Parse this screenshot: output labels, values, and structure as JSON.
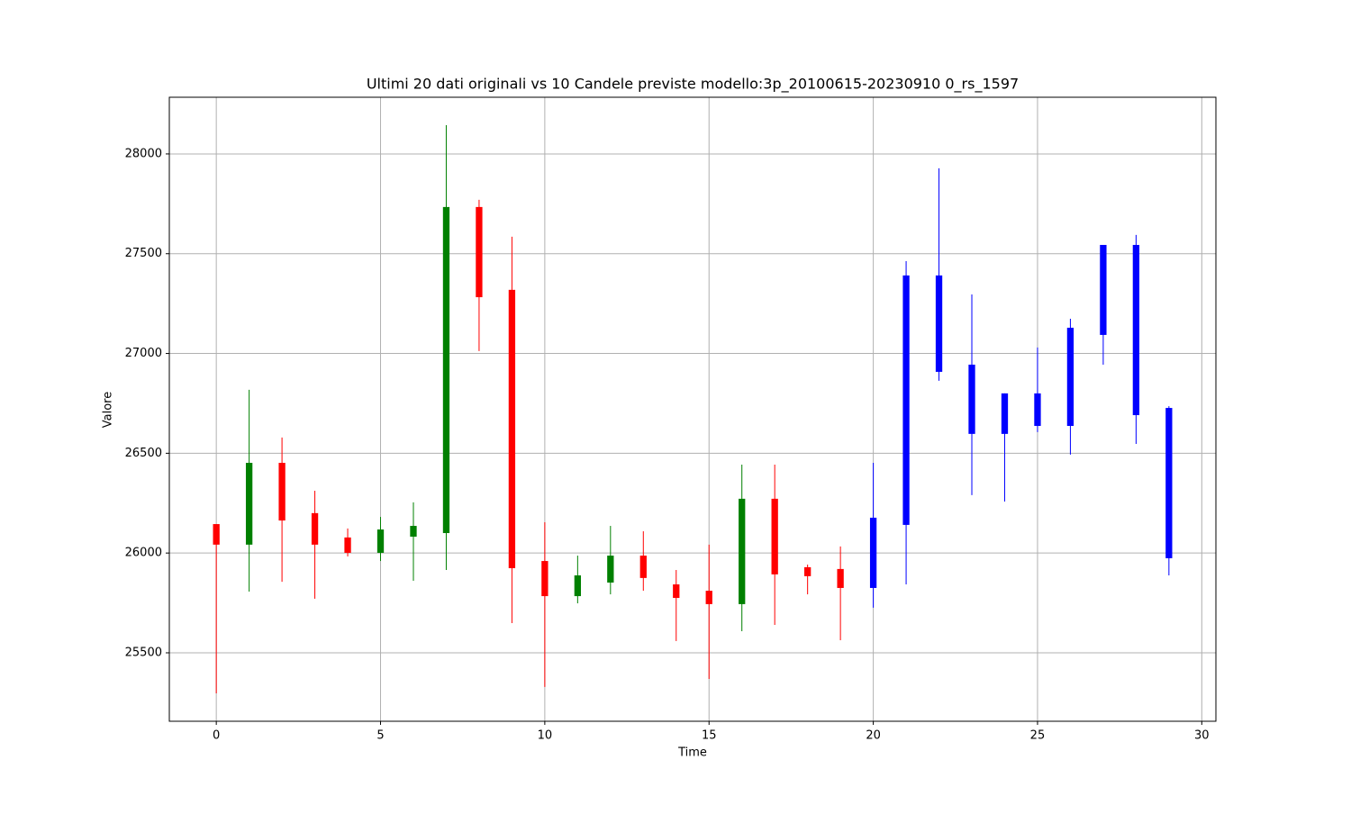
{
  "chart_data": {
    "type": "candlestick",
    "title": "Ultimi 20 dati originali vs 10 Candele previste modello:3p_20100615-20230910 0_rs_1597",
    "xlabel": "Time",
    "ylabel": "Valore",
    "xlim": [
      -1.43,
      30.43
    ],
    "ylim": [
      25157,
      28284
    ],
    "xticks": [
      0,
      5,
      10,
      15,
      20,
      25,
      30
    ],
    "yticks": [
      25500,
      26000,
      26500,
      27000,
      27500,
      28000
    ],
    "grid": true,
    "series": [
      {
        "up_color": "green",
        "down_color": "red",
        "x": [
          0,
          1,
          2,
          3,
          4,
          5,
          6,
          7,
          8,
          9,
          10,
          11,
          12,
          13,
          14,
          15,
          16,
          17,
          18,
          19
        ],
        "open": [
          26145,
          26042,
          26452,
          26200,
          26078,
          26001,
          26082,
          26100,
          27734,
          27319,
          25960,
          25784,
          25852,
          25987,
          25843,
          25811,
          25744,
          26272,
          25929,
          25920
        ],
        "high": [
          26145,
          26818,
          26579,
          26312,
          26123,
          26181,
          26254,
          28144,
          27770,
          27585,
          26154,
          25987,
          26136,
          26109,
          25915,
          26042,
          26443,
          26443,
          25942,
          26033
        ],
        "low": [
          25297,
          25807,
          25856,
          25771,
          25983,
          25960,
          25861,
          25915,
          27012,
          25649,
          25329,
          25748,
          25793,
          25811,
          25559,
          25369,
          25608,
          25640,
          25793,
          25563
        ],
        "close": [
          26042,
          26452,
          26163,
          26042,
          26001,
          26118,
          26136,
          27734,
          27282,
          25924,
          25784,
          25888,
          25987,
          25875,
          25775,
          25744,
          26272,
          25893,
          25884,
          25825
        ]
      },
      {
        "color": "blue",
        "x": [
          20,
          21,
          22,
          23,
          24,
          25,
          26,
          27,
          28,
          29
        ],
        "open": [
          25825,
          26141,
          27391,
          26944,
          26597,
          26800,
          26637,
          27093,
          27544,
          26727
        ],
        "high": [
          26452,
          27463,
          27928,
          27296,
          26800,
          27030,
          27174,
          27544,
          27594,
          26736
        ],
        "low": [
          25726,
          25843,
          26863,
          26290,
          26258,
          26606,
          26493,
          26944,
          26547,
          25888
        ],
        "close": [
          26177,
          27391,
          26908,
          26597,
          26800,
          26637,
          27129,
          27544,
          26691,
          25974
        ]
      }
    ]
  }
}
